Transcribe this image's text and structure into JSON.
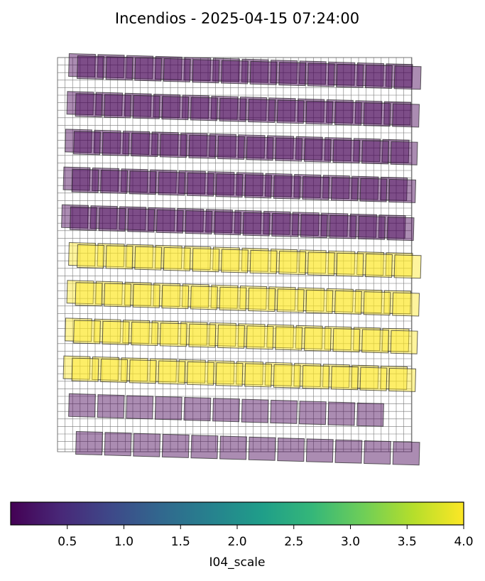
{
  "chart_data": {
    "type": "heatmap",
    "title": "Incendios - 2025-04-15 07:24:00",
    "colormap": "viridis",
    "colorbar": {
      "label": "I04_scale",
      "range": [
        0.0,
        4.0
      ],
      "ticks": [
        "0.5",
        "1.0",
        "1.5",
        "2.0",
        "2.5",
        "3.0",
        "3.5",
        "4.0"
      ],
      "tick_values": [
        0.5,
        1.0,
        1.5,
        2.0,
        2.5,
        3.0,
        3.5,
        4.0
      ],
      "orientation": "horizontal",
      "placement": "bottom"
    },
    "grid": true,
    "tile_alpha": 0.45,
    "rows": [
      {
        "value": 0.0,
        "count": 12
      },
      {
        "value": 0.0,
        "count": 12
      },
      {
        "value": 0.0,
        "count": 12
      },
      {
        "value": 0.0,
        "count": 12
      },
      {
        "value": 0.0,
        "count": 12
      },
      {
        "value": 4.0,
        "count": 12
      },
      {
        "value": 4.0,
        "count": 12
      },
      {
        "value": 4.0,
        "count": 12
      },
      {
        "value": 4.0,
        "count": 12
      },
      {
        "value": 0.0,
        "count": 11
      },
      {
        "value": 0.0,
        "count": 12
      }
    ]
  }
}
